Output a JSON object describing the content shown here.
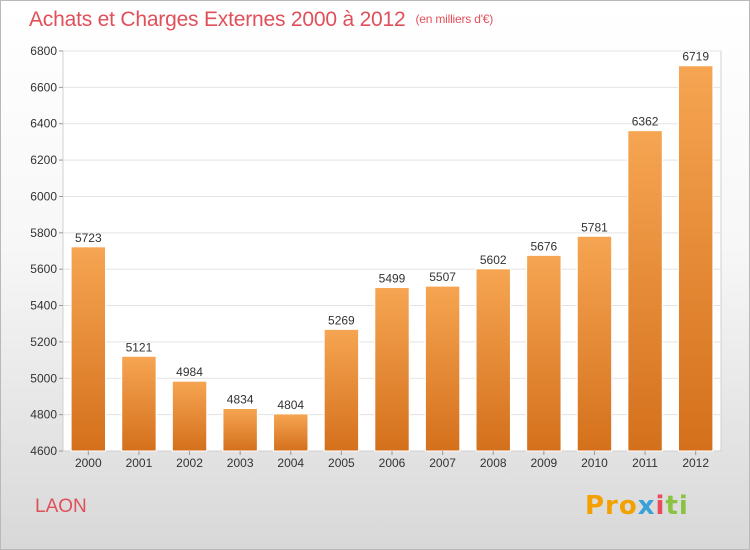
{
  "title": "Achats et Charges Externes 2000 à 2012",
  "subtitle": "(en milliers d'€)",
  "city": "LAON",
  "logo": {
    "p1": "Pro",
    "p2": "x",
    "p3": "i",
    "p4": "ti"
  },
  "colors": {
    "title": "#e0505a",
    "bar_top": "#f6a552",
    "bar_bottom": "#d4701c",
    "grid": "#e3e3e3"
  },
  "chart_data": {
    "type": "bar",
    "categories": [
      "2000",
      "2001",
      "2002",
      "2003",
      "2004",
      "2005",
      "2006",
      "2007",
      "2008",
      "2009",
      "2010",
      "2011",
      "2012"
    ],
    "values": [
      5723,
      5121,
      4984,
      4834,
      4804,
      5269,
      5499,
      5507,
      5602,
      5676,
      5781,
      6362,
      6719
    ],
    "title": "Achats et Charges Externes 2000 à 2012",
    "ylim": [
      4600,
      6800
    ],
    "yticks": [
      4600,
      4800,
      5000,
      5200,
      5400,
      5600,
      5800,
      6000,
      6200,
      6400,
      6600,
      6800
    ],
    "grid": true,
    "data_labels": true
  }
}
